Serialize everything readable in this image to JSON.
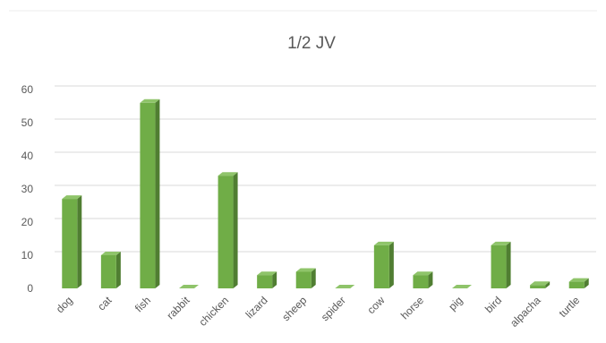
{
  "chart_data": {
    "type": "bar",
    "title": "1/2 JV",
    "xlabel": "",
    "ylabel": "",
    "categories": [
      "dog",
      "cat",
      "fish",
      "rabbit",
      "chicken",
      "lizard",
      "sheep",
      "spider",
      "cow",
      "horse",
      "pig",
      "bird",
      "alpacha",
      "turtle"
    ],
    "values": [
      27,
      10,
      56,
      0,
      34,
      4,
      5,
      0,
      13,
      4,
      0,
      13,
      1,
      2
    ],
    "ylim": [
      0,
      60
    ],
    "yticks": [
      0,
      10,
      20,
      30,
      40,
      50,
      60
    ],
    "grid": true,
    "legend": "none",
    "style": "3d-column",
    "colors": {
      "bar_front": "#70ad47",
      "bar_side": "#507e32",
      "bar_top": "#8fc46a",
      "grid": "#d9d9d9",
      "text": "#595959"
    }
  }
}
